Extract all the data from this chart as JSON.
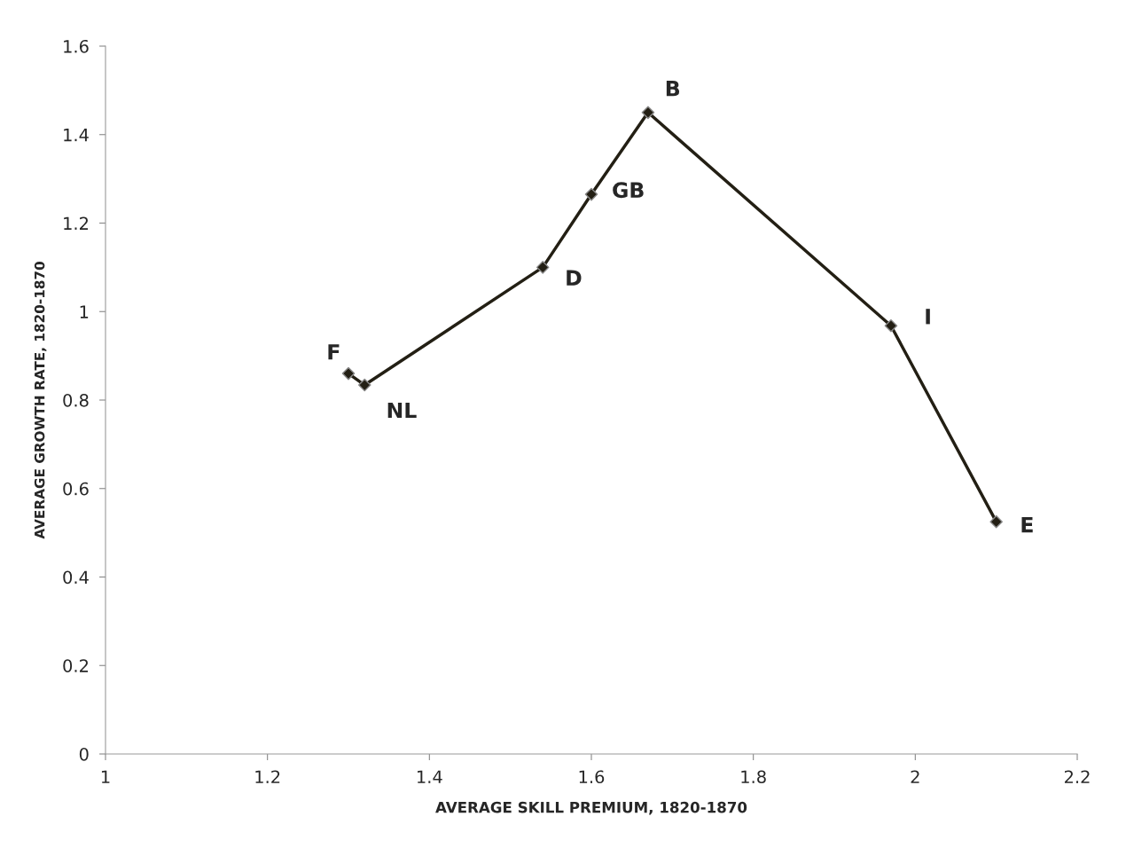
{
  "chart_data": {
    "type": "line",
    "xlabel": "AVERAGE SKILL PREMIUM, 1820-1870",
    "ylabel": "AVERAGE GROWTH RATE, 1820-1870",
    "x": [
      1.3,
      1.32,
      1.54,
      1.6,
      1.67,
      1.97,
      2.1
    ],
    "series": [
      {
        "color": "#231f14",
        "values": [
          0.86,
          0.834,
          1.1,
          1.265,
          1.45,
          0.968,
          0.525
        ]
      }
    ],
    "annotations": [
      {
        "text": "F",
        "x": 1.3,
        "y": 0.86
      },
      {
        "text": "NL",
        "x": 1.32,
        "y": 0.834
      },
      {
        "text": "D",
        "x": 1.54,
        "y": 1.1
      },
      {
        "text": "GB",
        "x": 1.6,
        "y": 1.265
      },
      {
        "text": "B",
        "x": 1.67,
        "y": 1.45
      },
      {
        "text": "I",
        "x": 1.97,
        "y": 0.968
      },
      {
        "text": "E",
        "x": 2.1,
        "y": 0.525
      }
    ],
    "xlim": [
      1,
      2.2
    ],
    "xticks": [
      1,
      1.2,
      1.4,
      1.6,
      1.8,
      2,
      2.2
    ],
    "ylim": [
      0,
      1.6
    ],
    "yticks": [
      0,
      0.2,
      0.4,
      0.6,
      0.8,
      1,
      1.2,
      1.4,
      1.6
    ],
    "marker": "diamond",
    "grid": false,
    "legend": false
  }
}
